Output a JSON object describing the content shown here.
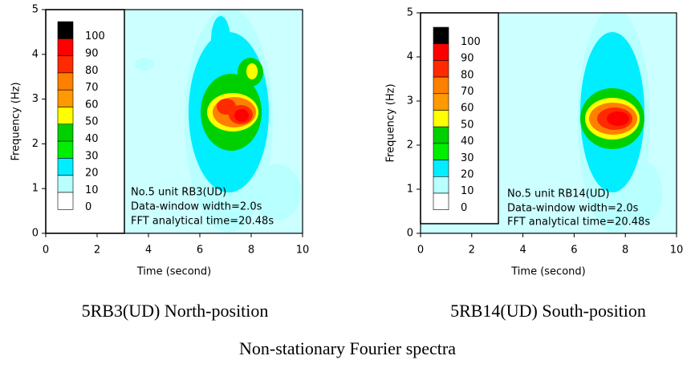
{
  "chart_data": [
    {
      "type": "heatmap",
      "xlabel": "Time (second)",
      "ylabel": "Frequency (Hz)",
      "xlim": [
        0,
        10
      ],
      "ylim": [
        0,
        5
      ],
      "xticks": [
        0,
        2,
        4,
        6,
        8,
        10
      ],
      "yticks": [
        0,
        1,
        2,
        3,
        4,
        5
      ],
      "levels": [
        100,
        90,
        80,
        70,
        60,
        50,
        40,
        30,
        20,
        10,
        0
      ],
      "level_colors": [
        "#000000",
        "#ff0000",
        "#ff2a00",
        "#ff8000",
        "#ff9900",
        "#ffff00",
        "#00d000",
        "#00ee00",
        "#00eeff",
        "#b8ffff",
        "#ffffff"
      ],
      "background": "#ccffff",
      "annotations": [
        "No.5 unit RB3(UD)",
        "Data-window width=2.0s",
        "FFT analytical time=20.48s"
      ],
      "caption": "5RB3(UD) North-position"
    },
    {
      "type": "heatmap",
      "xlabel": "Time (second)",
      "ylabel": "Frequency (Hz)",
      "xlim": [
        0,
        10
      ],
      "ylim": [
        0,
        5
      ],
      "xticks": [
        0,
        2,
        4,
        6,
        8,
        10
      ],
      "yticks": [
        0,
        1,
        2,
        3,
        4,
        5
      ],
      "levels": [
        100,
        90,
        80,
        70,
        60,
        50,
        40,
        30,
        20,
        10,
        0
      ],
      "level_colors": [
        "#000000",
        "#ff0000",
        "#ff2a00",
        "#ff8000",
        "#ff9900",
        "#ffff00",
        "#00d000",
        "#00ee00",
        "#00eeff",
        "#b8ffff",
        "#ffffff"
      ],
      "background": "#ccffff",
      "annotations": [
        "No.5 unit RB14(UD)",
        "Data-window width=2.0s",
        "FFT analytical time=20.48s"
      ],
      "caption": "5RB14(UD) South-position"
    }
  ],
  "caption": "Non-stationary Fourier spectra"
}
